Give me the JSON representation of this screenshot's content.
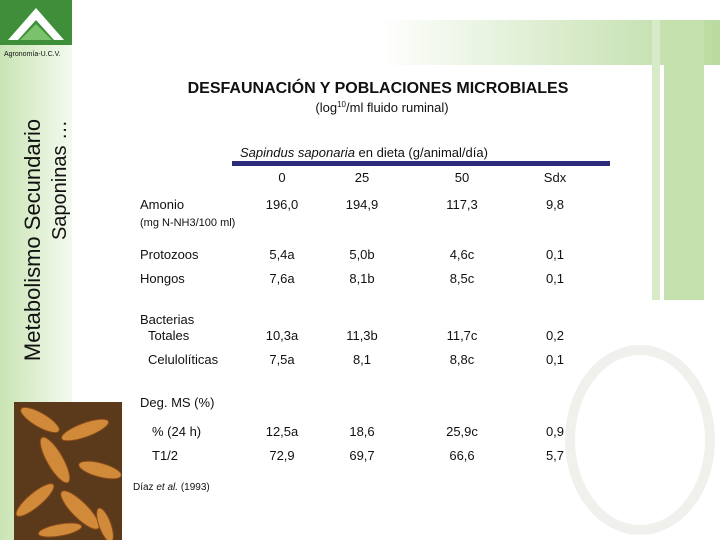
{
  "logo": {
    "text": "Agronomía-U.C.V."
  },
  "sidebar": {
    "title": "Metabolismo Secundario",
    "subtitle": "Saponinas …"
  },
  "slide": {
    "title": "DESFAUNACIÓN Y POBLACIONES MICROBIALES",
    "unit": {
      "prefix": "(log",
      "superscript": "10",
      "suffix": "/ml fluido ruminal)"
    },
    "caption": {
      "species": "Sapindus saponaria",
      "text": "en dieta (g/animal/día)"
    }
  },
  "table": {
    "columns": [
      "0",
      "25",
      "50",
      "Sdx"
    ],
    "rows": [
      {
        "label": "Amonio",
        "note": "(mg N-NH3/100 ml)",
        "values": [
          "196,0",
          "194,9",
          "117,3",
          "9,8"
        ]
      },
      {
        "label": "Protozoos",
        "values": [
          "5,4a",
          "5,0b",
          "4,6c",
          "0,1"
        ]
      },
      {
        "label": "Hongos",
        "values": [
          "7,6a",
          "8,1b",
          "8,5c",
          "0,1"
        ]
      },
      {
        "group": "Bacterias",
        "label": "Totales",
        "values": [
          "10,3a",
          "11,3b",
          "11,7c",
          "0,2"
        ]
      },
      {
        "label": "Celulolíticas",
        "values": [
          "7,5a",
          "8,1",
          "8,8c",
          "0,1"
        ]
      },
      {
        "group": "Deg. MS (%)",
        "label": "% (24 h)",
        "values": [
          "12,5a",
          "18,6",
          "25,9c",
          "0,9"
        ]
      },
      {
        "label": "T1/2",
        "values": [
          "72,9",
          "69,7",
          "66,6",
          "5,7"
        ]
      }
    ]
  },
  "citation": {
    "author": "Díaz",
    "etal": "et al.",
    "year": "(1993)"
  }
}
